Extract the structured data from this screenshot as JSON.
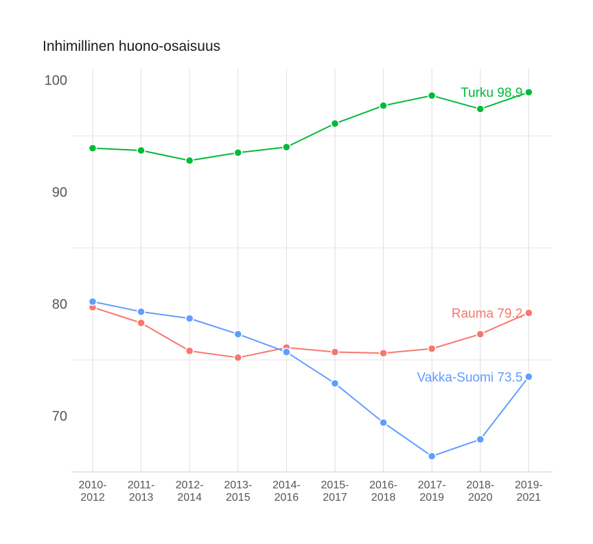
{
  "chart_data": {
    "type": "line",
    "title": "Inhimillinen huono-osaisuus",
    "xlabel": "",
    "ylabel": "",
    "ylim": [
      65,
      101
    ],
    "yticks": [
      70,
      80,
      90,
      100
    ],
    "y_minor_gridlines": [
      75,
      85,
      95
    ],
    "grid": true,
    "categories": [
      [
        "2010-",
        "2012"
      ],
      [
        "2011-",
        "2013"
      ],
      [
        "2012-",
        "2014"
      ],
      [
        "2013-",
        "2015"
      ],
      [
        "2014-",
        "2016"
      ],
      [
        "2015-",
        "2017"
      ],
      [
        "2016-",
        "2018"
      ],
      [
        "2017-",
        "2019"
      ],
      [
        "2018-",
        "2020"
      ],
      [
        "2019-",
        "2021"
      ]
    ],
    "series": [
      {
        "name": "Turku",
        "color": "#00ba38",
        "end_label": "Turku 98.9",
        "values": [
          93.9,
          93.7,
          92.8,
          93.5,
          94.0,
          96.1,
          97.7,
          98.6,
          97.4,
          98.9
        ]
      },
      {
        "name": "Rauma",
        "color": "#f8766d",
        "end_label": "Rauma 79.2",
        "values": [
          79.7,
          78.3,
          75.8,
          75.2,
          76.1,
          75.7,
          75.6,
          76.0,
          77.3,
          79.2
        ]
      },
      {
        "name": "Vakka-Suomi",
        "color": "#619cff",
        "end_label": "Vakka-Suomi 73.5",
        "values": [
          80.2,
          79.3,
          78.7,
          77.3,
          75.7,
          72.9,
          69.4,
          66.4,
          67.9,
          73.5
        ]
      }
    ]
  }
}
